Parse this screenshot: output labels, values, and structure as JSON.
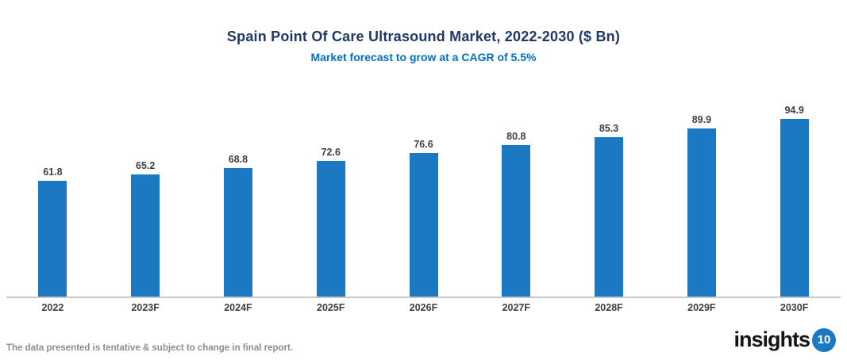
{
  "header": {
    "title": "Spain Point Of Care Ultrasound Market, 2022-2030 ($ Bn)",
    "subtitle": "Market forecast to grow at a CAGR of 5.5%"
  },
  "chart_data": {
    "type": "bar",
    "title": "Spain Point Of Care Ultrasound Market, 2022-2030 ($ Bn)",
    "subtitle": "Market forecast to grow at a CAGR of 5.5%",
    "categories": [
      "2022",
      "2023F",
      "2024F",
      "2025F",
      "2026F",
      "2027F",
      "2028F",
      "2029F",
      "2030F"
    ],
    "values": [
      61.8,
      65.2,
      68.8,
      72.6,
      76.6,
      80.8,
      85.3,
      89.9,
      94.9
    ],
    "xlabel": "",
    "ylabel": "",
    "ylim": [
      0,
      100
    ],
    "gridlines": false,
    "legend": "none",
    "data_labels": true,
    "bar_color": "#1B78C2"
  },
  "footer": {
    "note": "The data presented is tentative & subject to change in final report.",
    "logo_text": "insights",
    "logo_number": "10"
  },
  "colors": {
    "title": "#1F3864",
    "subtitle": "#0070C0",
    "bar": "#1B78C2",
    "axis_line": "#C8C8C8",
    "value_label": "#3F3F3F",
    "category_label": "#404040",
    "footer_text": "#8C8C8C",
    "logo_circle": "#1B78C2"
  }
}
